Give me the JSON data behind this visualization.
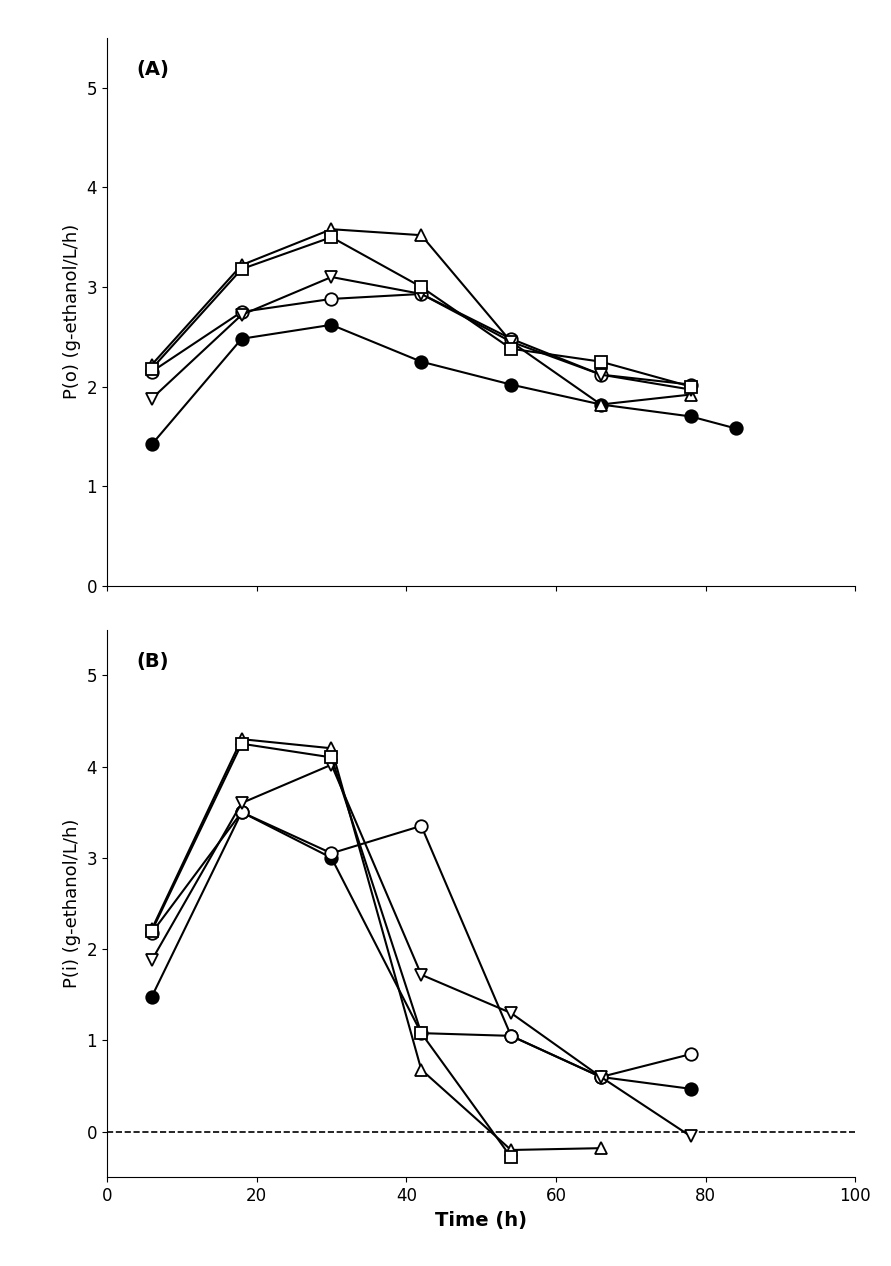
{
  "panel_A": {
    "label": "(A)",
    "ylabel": "P(o) (g-ethanol/L/h)",
    "ylim": [
      0,
      5.5
    ],
    "yticks": [
      0,
      1,
      2,
      3,
      4,
      5
    ],
    "series": {
      "filled_circle": {
        "x": [
          6,
          18,
          30,
          42,
          54,
          66,
          78,
          84
        ],
        "y": [
          1.42,
          2.48,
          2.62,
          2.25,
          2.02,
          1.82,
          1.7,
          1.58
        ],
        "marker": "o",
        "filled": true
      },
      "open_circle": {
        "x": [
          6,
          18,
          30,
          42,
          54,
          66,
          78
        ],
        "y": [
          2.15,
          2.75,
          2.88,
          2.93,
          2.48,
          2.12,
          2.02
        ],
        "marker": "o",
        "filled": false
      },
      "open_triangle_up": {
        "x": [
          6,
          18,
          30,
          42,
          54,
          66,
          78
        ],
        "y": [
          2.22,
          3.22,
          3.58,
          3.52,
          2.45,
          1.82,
          1.92
        ],
        "marker": "^",
        "filled": false
      },
      "open_triangle_down": {
        "x": [
          6,
          18,
          30,
          42,
          54,
          66,
          78
        ],
        "y": [
          1.88,
          2.72,
          3.1,
          2.93,
          2.45,
          2.12,
          1.97
        ],
        "marker": "v",
        "filled": false
      },
      "open_square": {
        "x": [
          6,
          18,
          30,
          42,
          54,
          66,
          78
        ],
        "y": [
          2.18,
          3.18,
          3.5,
          3.0,
          2.38,
          2.25,
          2.0
        ],
        "marker": "s",
        "filled": false
      }
    }
  },
  "panel_B": {
    "label": "(B)",
    "ylabel": "P(i) (g-ethanol/L/h)",
    "ylim": [
      -0.5,
      5.5
    ],
    "yticks": [
      0,
      1,
      2,
      3,
      4,
      5
    ],
    "dashed_y": 0,
    "series": {
      "filled_circle": {
        "x": [
          6,
          18,
          30,
          42,
          54,
          66,
          78
        ],
        "y": [
          1.48,
          3.5,
          3.0,
          1.08,
          1.05,
          0.6,
          0.47
        ],
        "marker": "o",
        "filled": true
      },
      "open_circle": {
        "x": [
          6,
          18,
          30,
          42,
          54,
          66,
          78
        ],
        "y": [
          2.18,
          3.5,
          3.05,
          3.35,
          1.05,
          0.6,
          0.85
        ],
        "marker": "o",
        "filled": false
      },
      "open_triangle_up": {
        "x": [
          6,
          18,
          30,
          42,
          54,
          66
        ],
        "y": [
          2.22,
          4.3,
          4.2,
          0.68,
          -0.2,
          -0.18
        ],
        "marker": "^",
        "filled": false
      },
      "open_triangle_down": {
        "x": [
          6,
          18,
          30,
          42,
          54,
          66,
          78
        ],
        "y": [
          1.88,
          3.6,
          4.02,
          1.72,
          1.3,
          0.6,
          -0.05
        ],
        "marker": "v",
        "filled": false
      },
      "open_square": {
        "x": [
          6,
          18,
          30,
          42,
          54
        ],
        "y": [
          2.2,
          4.25,
          4.1,
          1.08,
          -0.28
        ],
        "marker": "s",
        "filled": false
      }
    }
  },
  "xlabel": "Time (h)",
  "xlim": [
    0,
    100
  ],
  "xticks": [
    0,
    20,
    40,
    60,
    80,
    100
  ],
  "markersize": 9,
  "linewidth": 1.5,
  "color": "black"
}
